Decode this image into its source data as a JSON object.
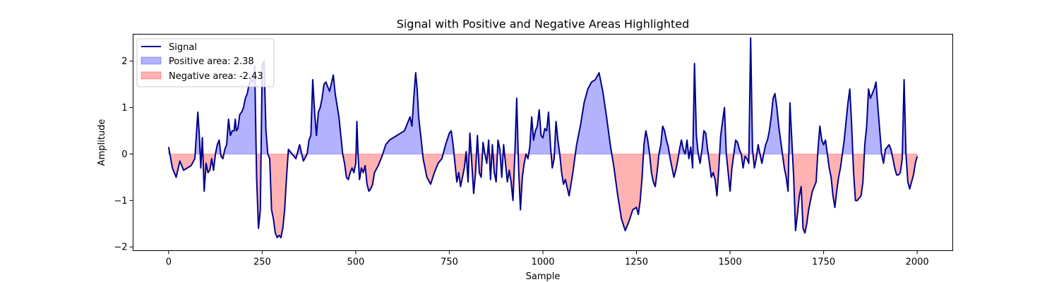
{
  "chart_data": {
    "type": "area",
    "title": "Signal with Positive and Negative Areas Highlighted",
    "xlabel": "Sample",
    "ylabel": "Amplitude",
    "xlim": [
      -95,
      2095
    ],
    "ylim": [
      -2.08,
      2.58
    ],
    "x_ticks": [
      0,
      250,
      500,
      750,
      1000,
      1250,
      1500,
      1750,
      2000
    ],
    "y_ticks": [
      -2,
      -1,
      0,
      1,
      2
    ],
    "x_range": [
      0,
      2000
    ],
    "grid": false,
    "legend_position": "top-left",
    "colors": {
      "signal": "#00008b",
      "positive_fill": "#0000ff",
      "negative_fill": "#ff0000",
      "fill_alpha": 0.3
    },
    "legend": [
      "Signal",
      "Positive area: 2.38",
      "Negative area: -2.43"
    ],
    "series": [
      {
        "name": "Signal",
        "x": [
          0,
          10,
          20,
          30,
          40,
          50,
          60,
          70,
          78,
          82,
          86,
          90,
          95,
          100,
          105,
          110,
          115,
          120,
          125,
          130,
          135,
          140,
          145,
          150,
          155,
          160,
          165,
          170,
          175,
          178,
          181,
          185,
          190,
          195,
          200,
          205,
          210,
          215,
          220,
          225,
          230,
          235,
          240,
          245,
          250,
          255,
          260,
          265,
          270,
          275,
          280,
          285,
          290,
          295,
          300,
          305,
          310,
          315,
          320,
          330,
          340,
          350,
          360,
          370,
          375,
          380,
          385,
          390,
          395,
          400,
          405,
          410,
          415,
          420,
          430,
          440,
          445,
          450,
          455,
          460,
          465,
          470,
          475,
          480,
          485,
          490,
          495,
          500,
          503,
          506,
          510,
          515,
          520,
          525,
          530,
          535,
          540,
          545,
          550,
          560,
          570,
          580,
          590,
          600,
          610,
          620,
          630,
          640,
          645,
          650,
          655,
          660,
          664,
          668,
          672,
          675,
          680,
          690,
          700,
          710,
          720,
          730,
          740,
          750,
          755,
          760,
          765,
          770,
          775,
          780,
          785,
          790,
          795,
          800,
          805,
          810,
          815,
          820,
          825,
          830,
          835,
          840,
          845,
          850,
          855,
          860,
          865,
          870,
          875,
          880,
          885,
          890,
          895,
          900,
          905,
          910,
          915,
          920,
          925,
          930,
          935,
          940,
          945,
          950,
          955,
          960,
          965,
          970,
          975,
          980,
          985,
          990,
          995,
          1000,
          1005,
          1010,
          1015,
          1020,
          1025,
          1030,
          1035,
          1040,
          1045,
          1050,
          1055,
          1060,
          1070,
          1080,
          1090,
          1100,
          1110,
          1120,
          1130,
          1140,
          1150,
          1160,
          1170,
          1180,
          1190,
          1200,
          1210,
          1220,
          1230,
          1240,
          1250,
          1255,
          1260,
          1265,
          1270,
          1275,
          1280,
          1285,
          1290,
          1295,
          1300,
          1305,
          1310,
          1315,
          1320,
          1325,
          1330,
          1335,
          1340,
          1345,
          1350,
          1355,
          1360,
          1365,
          1370,
          1375,
          1380,
          1385,
          1390,
          1395,
          1400,
          1405,
          1410,
          1415,
          1420,
          1425,
          1430,
          1435,
          1440,
          1445,
          1450,
          1455,
          1460,
          1465,
          1470,
          1475,
          1480,
          1485,
          1490,
          1495,
          1500,
          1505,
          1510,
          1515,
          1520,
          1525,
          1530,
          1535,
          1540,
          1545,
          1550,
          1555,
          1560,
          1565,
          1570,
          1575,
          1580,
          1585,
          1590,
          1595,
          1600,
          1605,
          1610,
          1615,
          1620,
          1625,
          1630,
          1635,
          1640,
          1645,
          1650,
          1655,
          1660,
          1665,
          1670,
          1675,
          1680,
          1685,
          1690,
          1695,
          1700,
          1705,
          1710,
          1715,
          1720,
          1725,
          1730,
          1735,
          1740,
          1745,
          1750,
          1755,
          1760,
          1765,
          1770,
          1775,
          1780,
          1785,
          1790,
          1795,
          1800,
          1805,
          1810,
          1815,
          1820,
          1825,
          1830,
          1835,
          1840,
          1845,
          1850,
          1855,
          1860,
          1865,
          1870,
          1875,
          1880,
          1885,
          1890,
          1895,
          1900,
          1905,
          1910,
          1915,
          1920,
          1925,
          1930,
          1935,
          1940,
          1945,
          1950,
          1955,
          1960,
          1965,
          1970,
          1975,
          1980,
          1985,
          1990,
          1995,
          2000
        ],
        "y": [
          0.15,
          -0.3,
          -0.5,
          -0.15,
          -0.35,
          -0.3,
          -0.25,
          -0.1,
          0.9,
          0.4,
          -0.3,
          0.35,
          -0.8,
          -0.2,
          -0.4,
          -0.35,
          -0.1,
          -0.35,
          0.0,
          0.2,
          0.3,
          -0.05,
          -0.1,
          0.1,
          0.2,
          0.75,
          0.4,
          0.5,
          0.5,
          0.75,
          0.5,
          0.55,
          0.85,
          0.9,
          1.0,
          1.2,
          1.3,
          1.5,
          1.6,
          1.55,
          1.9,
          -0.5,
          -1.6,
          -1.2,
          1.9,
          2.0,
          0.5,
          0.0,
          -0.1,
          -1.2,
          -1.4,
          -1.7,
          -1.8,
          -1.75,
          -1.8,
          -1.6,
          -1.2,
          -0.5,
          0.1,
          0.0,
          -0.1,
          0.2,
          -0.15,
          0.0,
          0.3,
          0.4,
          1.6,
          0.9,
          0.4,
          0.9,
          1.0,
          1.2,
          1.5,
          1.55,
          1.35,
          1.7,
          1.3,
          1.05,
          0.8,
          0.4,
          0.0,
          -0.2,
          -0.5,
          -0.55,
          -0.4,
          -0.3,
          -0.4,
          -0.2,
          0.7,
          0.0,
          -0.55,
          -0.3,
          -0.4,
          -0.25,
          -0.65,
          -0.8,
          -0.75,
          -0.65,
          -0.4,
          -0.25,
          -0.05,
          0.2,
          0.3,
          0.35,
          0.4,
          0.45,
          0.5,
          0.7,
          0.8,
          0.6,
          1.2,
          1.75,
          1.4,
          0.8,
          0.5,
          0.3,
          -0.1,
          -0.5,
          -0.65,
          -0.4,
          -0.2,
          -0.1,
          0.2,
          0.45,
          0.5,
          0.2,
          -0.2,
          -0.6,
          -0.4,
          -0.7,
          -0.5,
          -0.3,
          0.05,
          -0.6,
          0.45,
          -0.2,
          -0.85,
          -0.4,
          0.4,
          -0.4,
          -0.5,
          0.25,
          0.0,
          -0.2,
          0.3,
          -0.55,
          0.2,
          -0.4,
          -0.6,
          0.3,
          0.1,
          -0.5,
          0.2,
          -0.2,
          -0.6,
          -0.35,
          -0.6,
          -1.0,
          0.0,
          1.2,
          -0.3,
          -1.2,
          -0.5,
          -0.2,
          0.0,
          -0.1,
          0.15,
          0.8,
          0.3,
          0.5,
          0.6,
          0.95,
          0.4,
          0.35,
          0.55,
          0.5,
          0.9,
          0.2,
          -0.3,
          -0.1,
          0.7,
          0.3,
          0.0,
          -0.4,
          -0.65,
          -0.55,
          -0.9,
          -0.4,
          0.2,
          0.6,
          1.1,
          1.4,
          1.55,
          1.6,
          1.75,
          1.35,
          0.8,
          0.2,
          -0.3,
          -0.9,
          -1.4,
          -1.65,
          -1.45,
          -1.2,
          -1.15,
          -1.3,
          -1.0,
          -0.5,
          0.2,
          0.5,
          0.3,
          0.0,
          -0.4,
          -0.6,
          -0.7,
          -0.4,
          0.0,
          0.2,
          0.6,
          0.5,
          0.3,
          0.15,
          -0.1,
          -0.3,
          -0.5,
          -0.35,
          -0.15,
          0.1,
          0.3,
          0.1,
          0.0,
          0.3,
          -0.1,
          0.15,
          -0.3,
          1.95,
          0.4,
          0.0,
          -0.2,
          0.1,
          0.5,
          0.45,
          0.1,
          -0.2,
          -0.5,
          -0.4,
          -0.55,
          -0.9,
          -0.3,
          0.4,
          0.7,
          1.0,
          0.0,
          -0.4,
          -0.8,
          -0.3,
          0.0,
          0.3,
          0.25,
          0.1,
          0.0,
          -0.3,
          -0.05,
          -0.1,
          -0.2,
          2.5,
          0.1,
          -0.3,
          -0.1,
          0.2,
          0.0,
          -0.2,
          0.0,
          0.2,
          0.3,
          0.5,
          0.8,
          1.2,
          1.3,
          1.0,
          0.6,
          0.3,
          0.0,
          -0.3,
          -0.5,
          -0.8,
          1.1,
          0.3,
          -0.5,
          -1.65,
          -1.3,
          -0.9,
          -0.7,
          -1.6,
          -1.7,
          -1.5,
          -1.2,
          -1.0,
          -0.8,
          -0.7,
          -0.6,
          0.1,
          0.6,
          0.3,
          0.2,
          0.3,
          0.0,
          -0.3,
          -0.5,
          -0.9,
          -1.15,
          -0.8,
          -0.5,
          -0.3,
          0.0,
          0.3,
          0.7,
          1.1,
          1.4,
          0.6,
          -0.4,
          -1.0,
          -1.0,
          -0.95,
          -0.9,
          -0.6,
          0.2,
          0.6,
          1.4,
          1.2,
          1.3,
          1.4,
          1.55,
          1.0,
          0.5,
          0.0,
          -0.2,
          0.1,
          0.15,
          0.2,
          0.1,
          -0.1,
          -0.3,
          -0.45,
          -0.45,
          -0.4,
          -0.1,
          1.6,
          0.0,
          -0.6,
          -0.75,
          -0.6,
          -0.45,
          -0.2,
          -0.05
        ]
      }
    ]
  }
}
